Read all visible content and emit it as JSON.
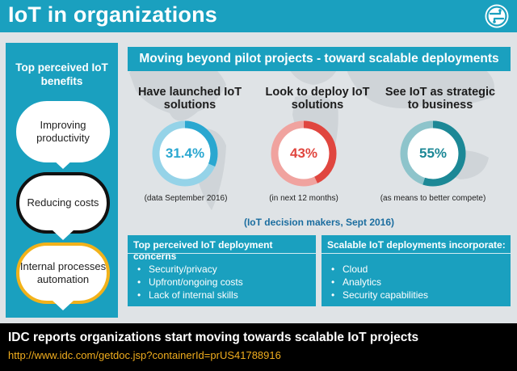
{
  "header": {
    "title": "IoT in organizations",
    "logo_icon": "circuit-logo-icon"
  },
  "left_panel": {
    "title": "Top perceived IoT benefits",
    "benefits": [
      "Improving productivity",
      "Reducing costs",
      "Internal processes automation"
    ]
  },
  "banner": {
    "title": "Moving beyond pilot projects - toward scalable deployments"
  },
  "stats": [
    {
      "label": "Have launched IoT solutions",
      "value": "31.4%",
      "note": "(data September 2016)",
      "percent": 31.4,
      "color": "#2aa7d0"
    },
    {
      "label": "Look to deploy IoT solutions",
      "value": "43%",
      "note": "(in next 12 months)",
      "percent": 43,
      "color": "#e0463f"
    },
    {
      "label": "See IoT as strategic to business",
      "value": "55%",
      "note": "(as means to better compete)",
      "percent": 55,
      "color": "#1c8896"
    }
  ],
  "decision_note": "(IoT decision makers, Sept 2016)",
  "concerns": {
    "title": "Top perceived IoT deployment concerns",
    "items": [
      "Security/privacy",
      "Upfront/ongoing costs",
      "Lack of internal skills"
    ]
  },
  "scalable": {
    "title": "Scalable IoT deployments incorporate:",
    "items": [
      "Cloud",
      "Analytics",
      "Security capabilities"
    ]
  },
  "footer": {
    "title": "IDC reports organizations start moving towards scalable IoT projects",
    "link": "http://www.idc.com/getdoc.jsp?containerId=prUS41788916"
  }
}
